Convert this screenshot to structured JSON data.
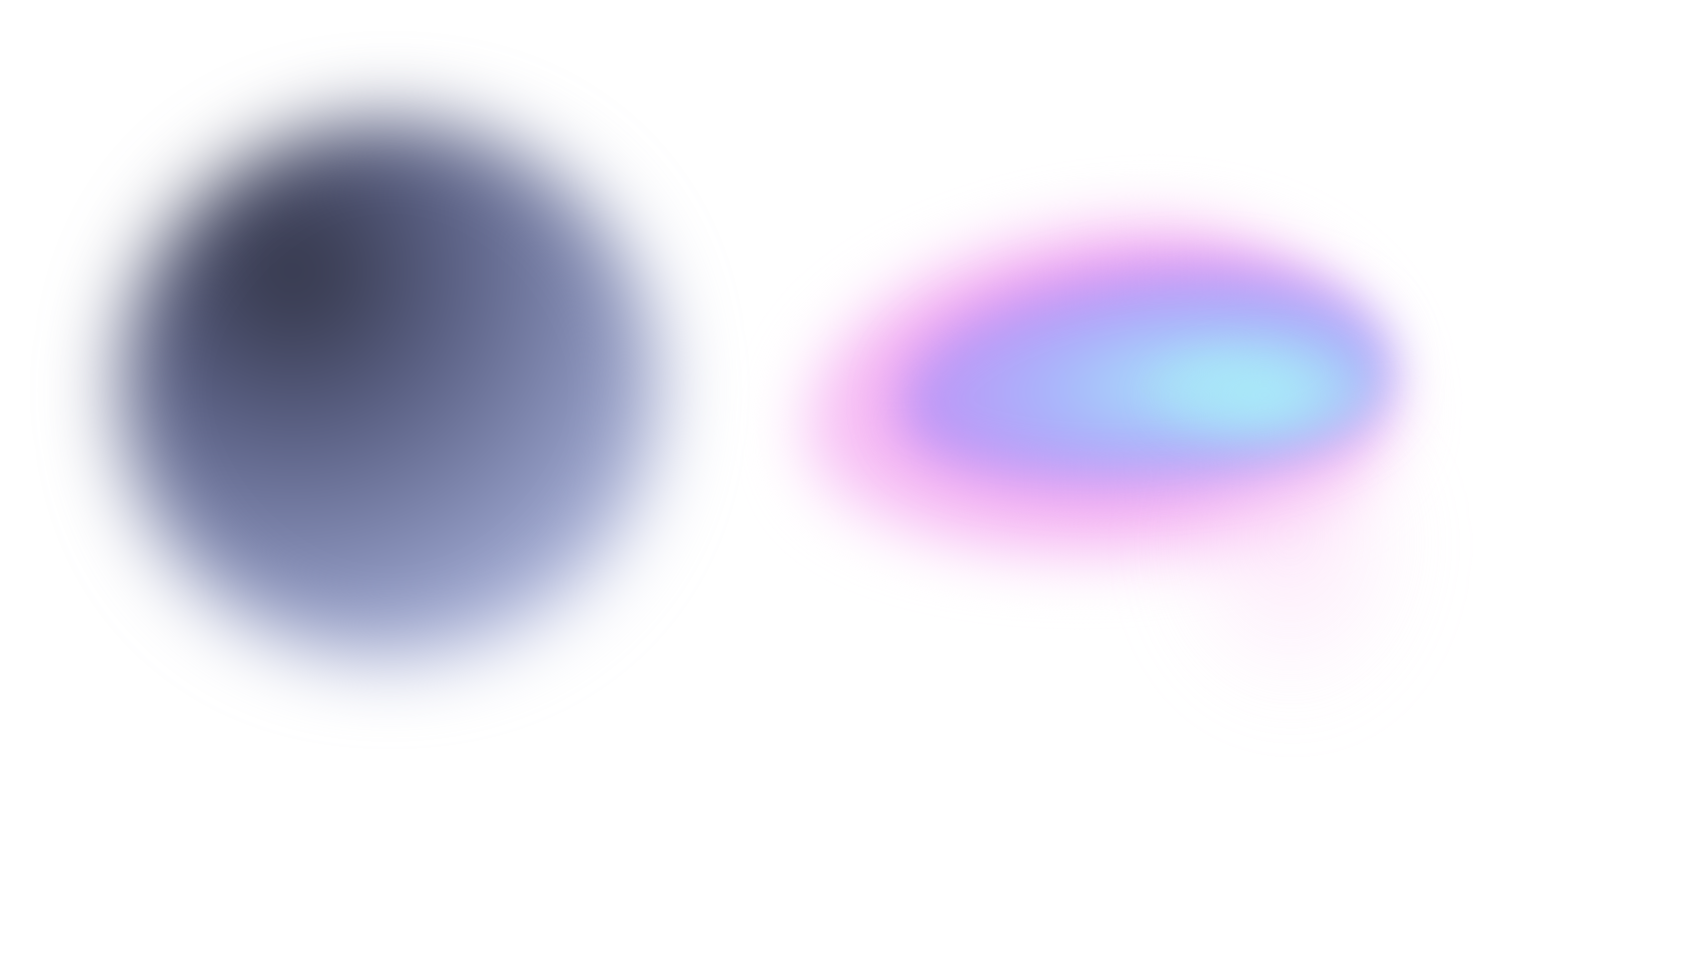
{
  "theme": {
    "background": "#ffffff"
  },
  "shapes": [
    {
      "name": "dark-gradient-orb",
      "colors": [
        "#2f3142",
        "#5a6084",
        "#8e97c0",
        "#c9d0f2"
      ]
    },
    {
      "name": "pink-cloud-halo",
      "colors": [
        "#f5b6f3",
        "#f089ef",
        "#fde4fb"
      ]
    },
    {
      "name": "violet-cloud-core",
      "colors": [
        "#c58bf5",
        "#a9b4fb",
        "#a9eef8"
      ]
    },
    {
      "name": "pink-cloud-tail",
      "colors": [
        "#fbd3f6"
      ]
    }
  ]
}
